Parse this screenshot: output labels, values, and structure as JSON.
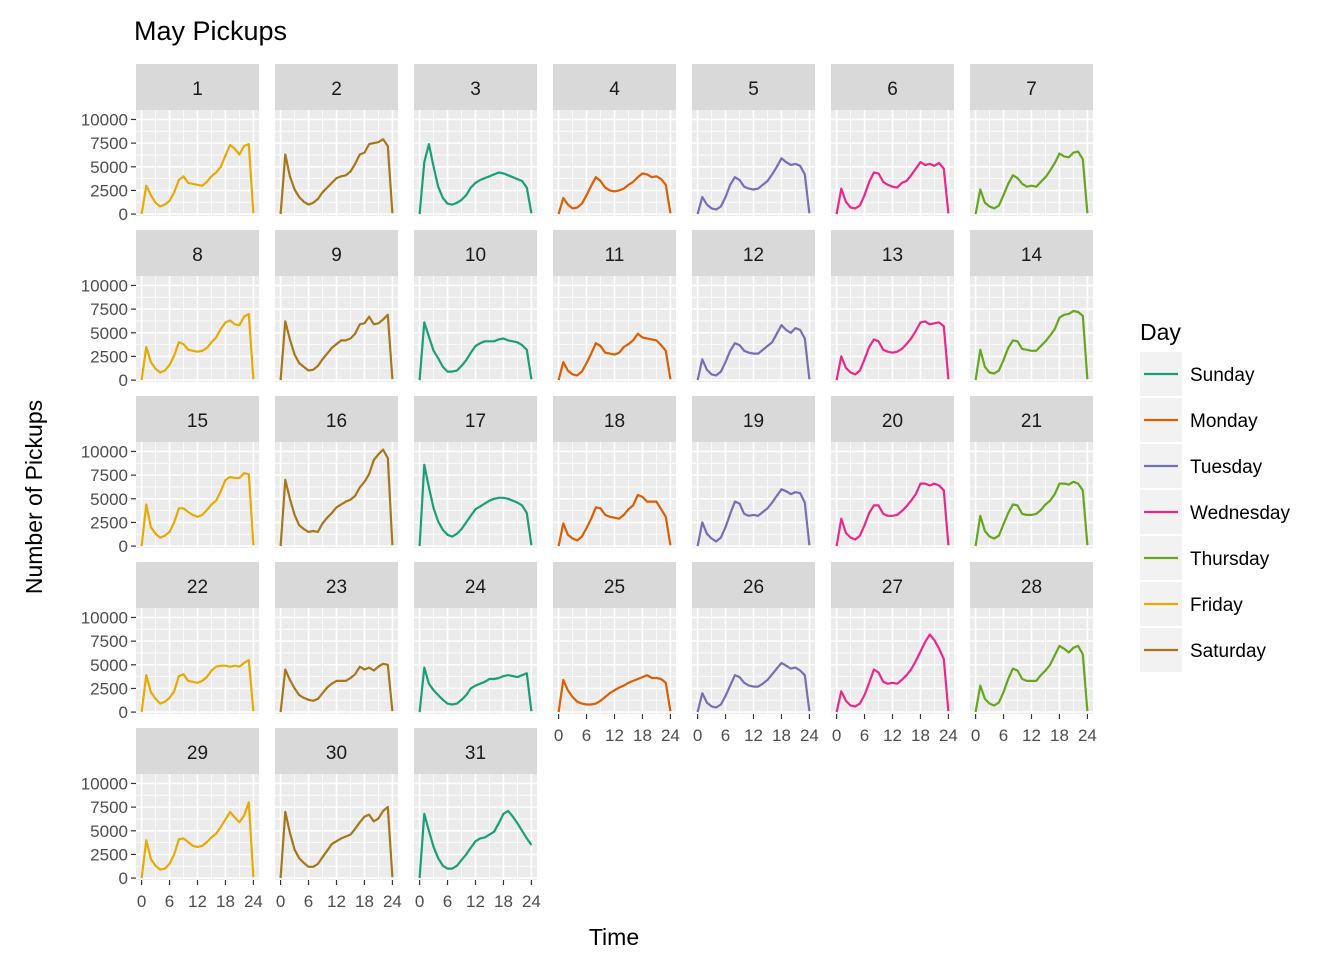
{
  "chart_data": {
    "type": "line",
    "title": "May Pickups",
    "xlabel": "Time",
    "ylabel": "Number of Pickups",
    "x_ticks": [
      0,
      6,
      12,
      18,
      24
    ],
    "x_tick_labels": [
      "0",
      "6",
      "12",
      "18",
      "24"
    ],
    "y_ticks": [
      0,
      2500,
      5000,
      7500,
      10000
    ],
    "y_tick_labels": [
      "0",
      "2500",
      "5000",
      "7500",
      "10000"
    ],
    "xlim": [
      -1.2,
      25.2
    ],
    "ylim": [
      -200,
      11000
    ],
    "grid": true,
    "legend_title": "Day",
    "legend_placement": "right",
    "days": [
      "Sunday",
      "Monday",
      "Tuesday",
      "Wednesday",
      "Thursday",
      "Friday",
      "Saturday"
    ],
    "day_colors": {
      "Sunday": "#1b9e77",
      "Monday": "#d95f02",
      "Tuesday": "#7570b3",
      "Wednesday": "#e7298a",
      "Thursday": "#66a61e",
      "Friday": "#e6ab02",
      "Saturday": "#a6761d"
    },
    "panel_background": "#ebebeb",
    "strip_background": "#d9d9d9",
    "x": [
      0,
      1,
      2,
      3,
      4,
      5,
      6,
      7,
      8,
      9,
      10,
      11,
      12,
      13,
      14,
      15,
      16,
      17,
      18,
      19,
      20,
      21,
      22,
      23,
      24
    ],
    "panels": [
      {
        "date": "1",
        "day": "Friday",
        "values": [
          0,
          3000,
          2000,
          1200,
          800,
          1000,
          1400,
          2300,
          3600,
          4000,
          3300,
          3200,
          3100,
          3000,
          3400,
          4000,
          4400,
          5000,
          6200,
          7300,
          6900,
          6300,
          7200,
          7400,
          100
        ]
      },
      {
        "date": "2",
        "day": "Saturday",
        "values": [
          0,
          6300,
          4000,
          2600,
          1800,
          1300,
          1000,
          1200,
          1600,
          2300,
          2800,
          3300,
          3800,
          4000,
          4100,
          4500,
          5300,
          6300,
          6500,
          7400,
          7500,
          7600,
          7900,
          7200,
          100
        ]
      },
      {
        "date": "3",
        "day": "Sunday",
        "values": [
          0,
          5500,
          7400,
          5000,
          2900,
          1700,
          1100,
          1000,
          1200,
          1500,
          2000,
          2800,
          3300,
          3600,
          3800,
          4000,
          4200,
          4400,
          4300,
          4100,
          3900,
          3700,
          3500,
          2800,
          100
        ]
      },
      {
        "date": "4",
        "day": "Monday",
        "values": [
          0,
          1700,
          1000,
          600,
          700,
          1100,
          2000,
          3000,
          3900,
          3500,
          2800,
          2500,
          2400,
          2500,
          2700,
          3100,
          3400,
          3900,
          4300,
          4200,
          3900,
          4000,
          3700,
          3100,
          100
        ]
      },
      {
        "date": "5",
        "day": "Tuesday",
        "values": [
          0,
          1800,
          1000,
          600,
          500,
          800,
          1800,
          3100,
          3900,
          3600,
          2900,
          2700,
          2600,
          2700,
          3100,
          3500,
          4200,
          5000,
          5900,
          5500,
          5200,
          5300,
          5100,
          4200,
          100
        ]
      },
      {
        "date": "6",
        "day": "Wednesday",
        "values": [
          0,
          2700,
          1300,
          700,
          600,
          900,
          2000,
          3400,
          4400,
          4300,
          3400,
          3100,
          2900,
          2800,
          3300,
          3500,
          4100,
          4800,
          5500,
          5200,
          5300,
          5100,
          5400,
          4800,
          100
        ]
      },
      {
        "date": "7",
        "day": "Thursday",
        "values": [
          0,
          2600,
          1200,
          800,
          600,
          900,
          2000,
          3200,
          4100,
          3800,
          3200,
          2900,
          3000,
          2900,
          3400,
          3900,
          4600,
          5400,
          6400,
          6100,
          6000,
          6500,
          6600,
          5800,
          100
        ]
      },
      {
        "date": "8",
        "day": "Friday",
        "values": [
          0,
          3500,
          1900,
          1200,
          800,
          1000,
          1600,
          2600,
          4000,
          3800,
          3200,
          3100,
          3000,
          3100,
          3400,
          4000,
          4500,
          5400,
          6100,
          6300,
          5900,
          5800,
          6700,
          7000,
          100
        ]
      },
      {
        "date": "9",
        "day": "Saturday",
        "values": [
          0,
          6200,
          4300,
          2700,
          1800,
          1400,
          1000,
          1100,
          1500,
          2200,
          2800,
          3400,
          3800,
          4200,
          4200,
          4400,
          4900,
          5900,
          6000,
          6700,
          5900,
          6000,
          6400,
          6900,
          100
        ]
      },
      {
        "date": "10",
        "day": "Sunday",
        "values": [
          0,
          6100,
          4600,
          3100,
          2300,
          1400,
          900,
          900,
          1000,
          1500,
          2100,
          2900,
          3600,
          3900,
          4100,
          4100,
          4100,
          4300,
          4400,
          4200,
          4100,
          4000,
          3700,
          3200,
          100
        ]
      },
      {
        "date": "11",
        "day": "Monday",
        "values": [
          0,
          1900,
          1000,
          600,
          500,
          900,
          1800,
          2800,
          3900,
          3600,
          2900,
          2800,
          2700,
          2900,
          3500,
          3800,
          4200,
          4900,
          4500,
          4400,
          4300,
          4200,
          3700,
          3100,
          100
        ]
      },
      {
        "date": "12",
        "day": "Tuesday",
        "values": [
          0,
          2200,
          1100,
          600,
          500,
          900,
          1900,
          3100,
          3900,
          3700,
          3100,
          2900,
          2800,
          2800,
          3200,
          3600,
          4000,
          4900,
          5800,
          5300,
          5000,
          5500,
          5300,
          4400,
          100
        ]
      },
      {
        "date": "13",
        "day": "Wednesday",
        "values": [
          0,
          2500,
          1300,
          800,
          600,
          1000,
          2200,
          3500,
          4300,
          4100,
          3200,
          3000,
          2900,
          3000,
          3300,
          3800,
          4400,
          5200,
          6100,
          6200,
          5900,
          6000,
          6100,
          5700,
          100
        ]
      },
      {
        "date": "14",
        "day": "Thursday",
        "values": [
          0,
          3200,
          1400,
          800,
          700,
          1000,
          2100,
          3400,
          4200,
          4100,
          3300,
          3200,
          3100,
          3100,
          3600,
          4100,
          4700,
          5400,
          6600,
          6900,
          7000,
          7300,
          7200,
          6800,
          100
        ]
      },
      {
        "date": "15",
        "day": "Friday",
        "values": [
          0,
          4400,
          2000,
          1300,
          900,
          1100,
          1500,
          2500,
          4000,
          4000,
          3600,
          3300,
          3100,
          3300,
          3800,
          4400,
          4800,
          5800,
          7000,
          7300,
          7200,
          7200,
          7700,
          7600,
          100
        ]
      },
      {
        "date": "16",
        "day": "Saturday",
        "values": [
          0,
          7000,
          5000,
          3300,
          2200,
          1800,
          1500,
          1600,
          1500,
          2400,
          3000,
          3500,
          4100,
          4400,
          4700,
          4900,
          5300,
          6200,
          6800,
          7600,
          9100,
          9700,
          10200,
          9300,
          100
        ]
      },
      {
        "date": "17",
        "day": "Sunday",
        "values": [
          0,
          8600,
          6200,
          4000,
          2600,
          1700,
          1200,
          1000,
          1300,
          1800,
          2500,
          3200,
          3900,
          4200,
          4500,
          4800,
          5000,
          5100,
          5100,
          5000,
          4800,
          4600,
          4300,
          3500,
          100
        ]
      },
      {
        "date": "18",
        "day": "Monday",
        "values": [
          0,
          2400,
          1200,
          800,
          600,
          1000,
          1900,
          2900,
          4100,
          4000,
          3300,
          3100,
          3000,
          2900,
          3300,
          3900,
          4300,
          5400,
          5200,
          4700,
          4700,
          4700,
          3900,
          3100,
          100
        ]
      },
      {
        "date": "19",
        "day": "Tuesday",
        "values": [
          0,
          2500,
          1300,
          800,
          500,
          900,
          2000,
          3400,
          4700,
          4500,
          3400,
          3200,
          3300,
          3200,
          3600,
          4000,
          4600,
          5300,
          6000,
          5800,
          5500,
          5700,
          5600,
          4600,
          100
        ]
      },
      {
        "date": "20",
        "day": "Wednesday",
        "values": [
          0,
          2900,
          1400,
          900,
          700,
          1100,
          2200,
          3500,
          4300,
          4300,
          3400,
          3200,
          3200,
          3300,
          3700,
          4200,
          4800,
          5500,
          6600,
          6600,
          6400,
          6600,
          6400,
          5900,
          100
        ]
      },
      {
        "date": "21",
        "day": "Thursday",
        "values": [
          0,
          3200,
          1600,
          1000,
          800,
          1100,
          2300,
          3500,
          4400,
          4300,
          3400,
          3300,
          3300,
          3400,
          3800,
          4400,
          4800,
          5500,
          6600,
          6600,
          6500,
          6800,
          6600,
          5900,
          100
        ]
      },
      {
        "date": "22",
        "day": "Friday",
        "values": [
          0,
          3900,
          2100,
          1400,
          900,
          1100,
          1500,
          2200,
          3800,
          4000,
          3300,
          3200,
          3100,
          3300,
          3700,
          4400,
          4800,
          4900,
          4900,
          4800,
          4900,
          4800,
          5200,
          5500,
          100
        ]
      },
      {
        "date": "23",
        "day": "Saturday",
        "values": [
          0,
          4500,
          3400,
          2500,
          1800,
          1500,
          1300,
          1200,
          1400,
          2000,
          2600,
          3000,
          3300,
          3300,
          3300,
          3600,
          4000,
          4800,
          4500,
          4700,
          4400,
          4800,
          5100,
          5000,
          100
        ]
      },
      {
        "date": "24",
        "day": "Sunday",
        "values": [
          0,
          4700,
          3000,
          2300,
          1800,
          1300,
          900,
          800,
          900,
          1300,
          1800,
          2500,
          2800,
          3000,
          3200,
          3500,
          3500,
          3600,
          3800,
          3900,
          3800,
          3700,
          3900,
          4100,
          100
        ]
      },
      {
        "date": "25",
        "day": "Monday",
        "values": [
          0,
          3400,
          2300,
          1600,
          1100,
          900,
          800,
          800,
          900,
          1200,
          1600,
          2000,
          2300,
          2600,
          2800,
          3100,
          3300,
          3500,
          3700,
          3900,
          3600,
          3600,
          3500,
          3100,
          100
        ]
      },
      {
        "date": "26",
        "day": "Tuesday",
        "values": [
          0,
          2000,
          1000,
          600,
          500,
          800,
          1700,
          2800,
          3900,
          3700,
          3100,
          2800,
          2700,
          2700,
          3000,
          3400,
          4000,
          4600,
          5200,
          4900,
          4600,
          4700,
          4400,
          3900,
          100
        ]
      },
      {
        "date": "27",
        "day": "Wednesday",
        "values": [
          0,
          2200,
          1200,
          700,
          600,
          900,
          1800,
          3100,
          4500,
          4200,
          3200,
          3000,
          3100,
          3000,
          3400,
          3900,
          4500,
          5400,
          6400,
          7400,
          8200,
          7600,
          6700,
          5600,
          100
        ]
      },
      {
        "date": "28",
        "day": "Thursday",
        "values": [
          0,
          2800,
          1400,
          900,
          700,
          1000,
          2100,
          3500,
          4600,
          4400,
          3500,
          3300,
          3300,
          3300,
          3900,
          4400,
          5000,
          6000,
          7000,
          6700,
          6300,
          6800,
          7000,
          6100,
          100
        ]
      },
      {
        "date": "29",
        "day": "Friday",
        "values": [
          0,
          4000,
          2000,
          1300,
          900,
          1000,
          1500,
          2500,
          4100,
          4200,
          3800,
          3400,
          3300,
          3400,
          3800,
          4300,
          4700,
          5400,
          6200,
          7000,
          6400,
          5900,
          6600,
          8000,
          100
        ]
      },
      {
        "date": "30",
        "day": "Saturday",
        "values": [
          0,
          7000,
          4800,
          3000,
          2100,
          1600,
          1200,
          1200,
          1500,
          2200,
          2900,
          3600,
          3900,
          4200,
          4400,
          4600,
          5200,
          5900,
          6500,
          6700,
          6000,
          6300,
          7100,
          7500,
          100
        ]
      },
      {
        "date": "31",
        "day": "Sunday",
        "values": [
          0,
          6800,
          5000,
          3300,
          2100,
          1300,
          1000,
          1000,
          1300,
          1900,
          2500,
          3200,
          3900,
          4200,
          4300,
          4600,
          4900,
          5800,
          6800,
          7100,
          6500,
          5800,
          5000,
          4200,
          3500
        ]
      }
    ]
  }
}
